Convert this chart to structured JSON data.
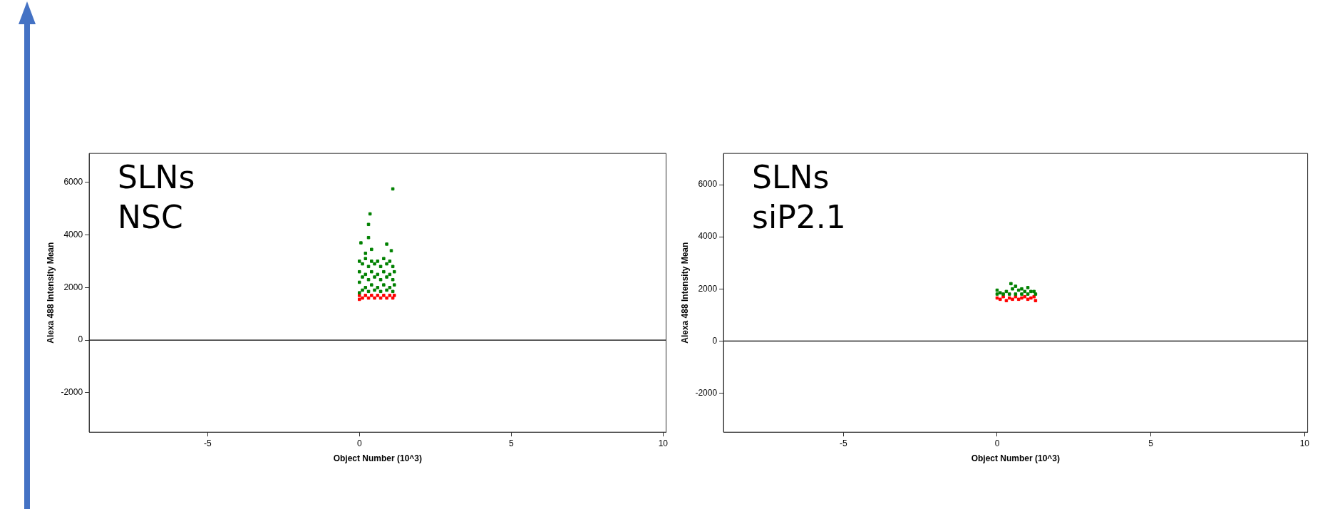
{
  "chart_data": [
    {
      "type": "scatter",
      "xlabel": "Object Number (10^3)",
      "ylabel": "Alexa 488 Intensity Mean",
      "annotations": [
        "SLNs",
        "NSC"
      ],
      "xlim": [
        -8.9,
        10.1
      ],
      "xticks": [
        -5,
        0,
        5,
        10
      ],
      "ylim": [
        -3500,
        7100
      ],
      "yticks": [
        -2000,
        0,
        2000,
        4000,
        6000
      ],
      "marker": "square",
      "ref_lines": [
        {
          "axis": "y",
          "value": 0,
          "color": "#000000"
        }
      ],
      "series": [
        {
          "color": "#008000",
          "x": [
            0,
            0,
            0,
            0,
            0.1,
            0.1,
            0.1,
            0.2,
            0.2,
            0.2,
            0.3,
            0.3,
            0.3,
            0.4,
            0.4,
            0.4,
            0.5,
            0.5,
            0.5,
            0.6,
            0.6,
            0.6,
            0.7,
            0.7,
            0.7,
            0.8,
            0.8,
            0.8,
            0.9,
            0.9,
            0.9,
            1.0,
            1.0,
            1.0,
            1.1,
            1.1,
            1.1,
            1.15,
            1.15,
            0.05,
            0.2,
            0.3,
            0.3,
            0.35,
            0.4,
            0.9,
            1.05,
            1.1
          ],
          "values": [
            1800,
            2200,
            2600,
            3000,
            1900,
            2400,
            2900,
            2000,
            2500,
            3100,
            1850,
            2300,
            2800,
            2100,
            2600,
            3000,
            1900,
            2400,
            2900,
            2000,
            2500,
            3000,
            1850,
            2300,
            2800,
            2100,
            2600,
            3100,
            1900,
            2400,
            2900,
            2000,
            2500,
            3000,
            1850,
            2300,
            2800,
            2100,
            2600,
            3700,
            3300,
            3900,
            4400,
            4800,
            3450,
            3650,
            3400,
            5750
          ]
        },
        {
          "color": "#ff0000",
          "x": [
            0,
            0,
            0.1,
            0.2,
            0.3,
            0.4,
            0.5,
            0.6,
            0.7,
            0.8,
            0.9,
            1.0,
            1.1,
            1.15
          ],
          "values": [
            1550,
            1700,
            1600,
            1700,
            1600,
            1700,
            1600,
            1700,
            1600,
            1700,
            1600,
            1700,
            1600,
            1700
          ]
        }
      ]
    },
    {
      "type": "scatter",
      "xlabel": "Object Number (10^3)",
      "ylabel": "Alexa 488 Intensity Mean",
      "annotations": [
        "SLNs",
        "siP2.1"
      ],
      "xlim": [
        -8.9,
        10.1
      ],
      "xticks": [
        -5,
        0,
        5,
        10
      ],
      "ylim": [
        -3500,
        7200
      ],
      "yticks": [
        -2000,
        0,
        2000,
        4000,
        6000
      ],
      "marker": "square",
      "ref_lines": [
        {
          "axis": "y",
          "value": 0,
          "color": "#000000"
        }
      ],
      "series": [
        {
          "color": "#008000",
          "x": [
            0,
            0,
            0.1,
            0.2,
            0.3,
            0.4,
            0.45,
            0.5,
            0.6,
            0.6,
            0.7,
            0.8,
            0.8,
            0.9,
            1.0,
            1.0,
            1.1,
            1.2,
            1.25
          ],
          "values": [
            1800,
            1950,
            1850,
            1800,
            1900,
            1800,
            2200,
            2000,
            2100,
            1800,
            1950,
            2000,
            1800,
            1900,
            2050,
            1800,
            1900,
            1900,
            1800
          ]
        },
        {
          "color": "#ff0000",
          "x": [
            0,
            0.1,
            0.2,
            0.3,
            0.4,
            0.5,
            0.6,
            0.7,
            0.8,
            0.9,
            1.0,
            1.1,
            1.2,
            1.25
          ],
          "values": [
            1650,
            1600,
            1700,
            1550,
            1650,
            1600,
            1700,
            1600,
            1650,
            1700,
            1600,
            1650,
            1700,
            1550
          ]
        }
      ]
    }
  ]
}
